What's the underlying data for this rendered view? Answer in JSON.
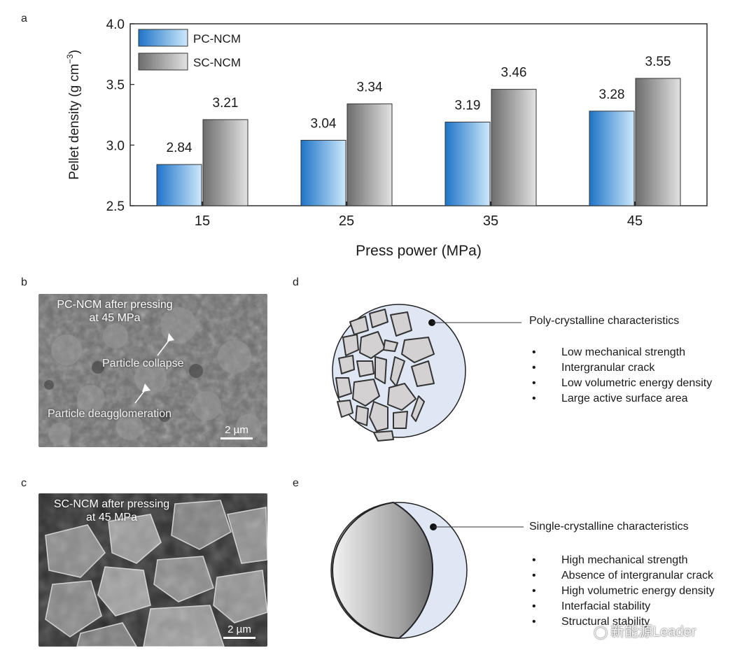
{
  "panels": {
    "a": "a",
    "b": "b",
    "c": "c",
    "d": "d",
    "e": "e"
  },
  "chart_data": {
    "type": "bar",
    "categories": [
      "15",
      "25",
      "35",
      "45"
    ],
    "series": [
      {
        "name": "PC-NCM",
        "values": [
          2.84,
          3.04,
          3.19,
          3.28
        ],
        "color": "#3a8fd8"
      },
      {
        "name": "SC-NCM",
        "values": [
          3.21,
          3.34,
          3.46,
          3.55
        ],
        "color": "#8c8c8c"
      }
    ],
    "data_labels": [
      [
        "2.84",
        "3.04",
        "3.19",
        "3.28"
      ],
      [
        "3.21",
        "3.34",
        "3.46",
        "3.55"
      ]
    ],
    "xlabel": "Press power (MPa)",
    "ylabel": "Pellet density (g cm",
    "ylabel_sup": "−3",
    "ylabel_close": ")",
    "ylim": [
      2.5,
      4.0
    ],
    "yticks": [
      "2.5",
      "3.0",
      "3.5",
      "4.0"
    ],
    "legend_position": "top-left",
    "grid": false
  },
  "sem_b": {
    "caption_line1": "PC-NCM after pressing",
    "caption_line2": "at 45 MPa",
    "label_collapse": "Particle collapse",
    "label_deagg": "Particle deagglomeration",
    "scale": "2 µm"
  },
  "sem_c": {
    "caption_line1": "SC-NCM after pressing",
    "caption_line2": "at 45 MPa",
    "scale": "2 µm"
  },
  "poly": {
    "title": "Poly-crystalline characteristics",
    "items": [
      "Low mechanical strength",
      "Intergranular crack",
      "Low volumetric energy density",
      "Large active surface area"
    ]
  },
  "single": {
    "title": "Single-crystalline characteristics",
    "items": [
      "High mechanical strength",
      "Absence of intergranular crack",
      "High volumetric energy density",
      "Interfacial stability",
      "Structural stability"
    ]
  },
  "watermark": "新能源Leader"
}
